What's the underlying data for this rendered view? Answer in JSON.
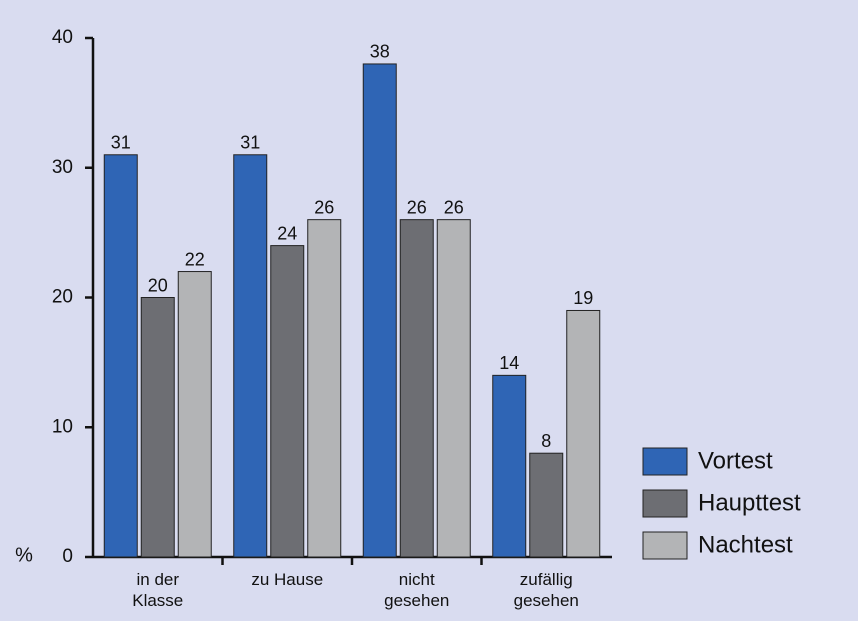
{
  "chart_data": {
    "type": "bar",
    "y_label": "%",
    "categories": [
      "in der Klasse",
      "zu Hause",
      "nicht gesehen",
      "zufällig gesehen"
    ],
    "series": [
      {
        "name": "Vortest",
        "color": "#2f65b5",
        "values": [
          31,
          31,
          38,
          14
        ]
      },
      {
        "name": "Haupttest",
        "color": "#6d6e73",
        "values": [
          20,
          24,
          26,
          8
        ]
      },
      {
        "name": "Nachtest",
        "color": "#b3b4b6",
        "values": [
          22,
          26,
          26,
          19
        ]
      }
    ],
    "ylim": [
      0,
      40
    ],
    "yticks": [
      0,
      10,
      20,
      30,
      40
    ],
    "legend": "right"
  }
}
